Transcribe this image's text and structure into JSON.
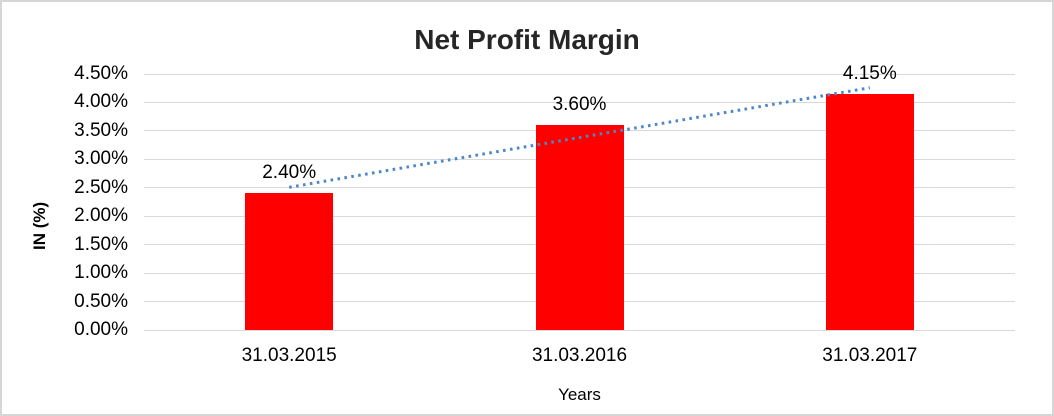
{
  "chart_data": {
    "type": "bar",
    "title": "Net Profit Margin",
    "xlabel": "Years",
    "ylabel": "IN (%)",
    "categories": [
      "31.03.2015",
      "31.03.2016",
      "31.03.2017"
    ],
    "values": [
      2.4,
      3.6,
      4.15
    ],
    "data_labels": [
      "2.40%",
      "3.60%",
      "4.15%"
    ],
    "ytick_labels": [
      "0.00%",
      "0.50%",
      "1.00%",
      "1.50%",
      "2.00%",
      "2.50%",
      "3.00%",
      "3.50%",
      "4.00%",
      "4.50%"
    ],
    "ylim": [
      0,
      4.5
    ],
    "ytick_step": 0.5,
    "grid": true,
    "legend": false,
    "colors": {
      "bar": "#ff0000",
      "trendline": "#4e87c7",
      "gridline": "#d9d9d9",
      "title_text": "#262626",
      "tick_text": "#000000"
    },
    "trendline": {
      "type": "linear",
      "style": "dotted"
    }
  }
}
